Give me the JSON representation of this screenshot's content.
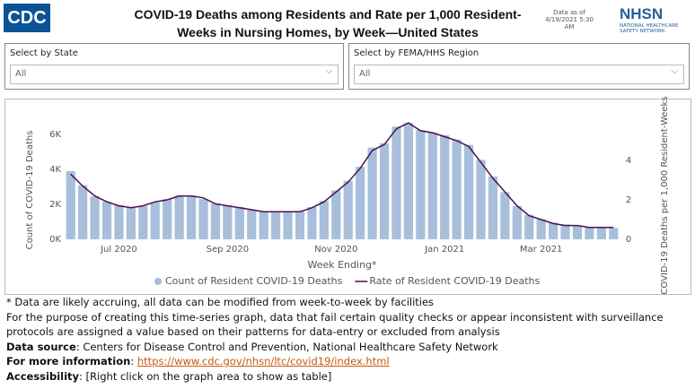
{
  "header": {
    "logo": "CDC",
    "title": "COVID-19 Deaths among Residents and Rate per 1,000 Resident-Weeks in Nursing Homes, by Week—United States",
    "data_date": "Data as of 4/19/2021 5:30 AM",
    "nhsn_logo": "NHSN",
    "nhsn_name": "NATIONAL HEALTHCARE SAFETY NETWORK"
  },
  "filters": [
    {
      "label": "Select by State",
      "value": "All"
    },
    {
      "label": "Select by FEMA/HHS Region",
      "value": "All"
    }
  ],
  "chart_data": {
    "type": "bar-line",
    "categories": [
      null,
      null,
      null,
      null,
      "Jul 2020",
      null,
      null,
      null,
      null,
      null,
      null,
      null,
      null,
      "Sep 2020",
      null,
      null,
      null,
      null,
      null,
      null,
      null,
      null,
      "Nov 2020",
      null,
      null,
      null,
      null,
      null,
      null,
      null,
      null,
      "Jan 2021",
      null,
      null,
      null,
      null,
      null,
      null,
      null,
      "Mar 2021",
      null,
      null,
      null,
      null,
      null,
      null
    ],
    "x_label": "Week Ending*",
    "y_label": "Count of COVID-19 Deaths",
    "y2_label": "COVID-19 Deaths per 1,000 Resident-Weeks",
    "series": [
      {
        "name": "Count of Resident COVID-19 Deaths",
        "type": "bar",
        "color": "#a7bfdb",
        "values": [
          3900,
          3100,
          2450,
          2150,
          1950,
          1800,
          1900,
          2100,
          2300,
          2500,
          2500,
          2300,
          2050,
          1950,
          1850,
          1700,
          1600,
          1550,
          1550,
          1600,
          1850,
          2200,
          2800,
          3350,
          4150,
          5250,
          5500,
          6450,
          6650,
          6250,
          6100,
          5950,
          5700,
          5400,
          4550,
          3600,
          2700,
          1900,
          1400,
          1150,
          950,
          850,
          750,
          700,
          700,
          650
        ]
      },
      {
        "name": "Rate of Resident COVID-19 Deaths",
        "type": "line",
        "axis": "y2",
        "color": "#4b0f4e",
        "values": [
          3.3,
          2.7,
          2.2,
          1.9,
          1.7,
          1.6,
          1.7,
          1.9,
          2.0,
          2.2,
          2.2,
          2.1,
          1.8,
          1.7,
          1.6,
          1.5,
          1.4,
          1.4,
          1.4,
          1.4,
          1.6,
          1.9,
          2.4,
          2.9,
          3.6,
          4.5,
          4.8,
          5.6,
          5.9,
          5.5,
          5.4,
          5.2,
          5.0,
          4.7,
          3.9,
          3.1,
          2.4,
          1.7,
          1.2,
          1.0,
          0.8,
          0.7,
          0.7,
          0.6,
          0.6,
          0.6
        ]
      }
    ],
    "ylim": [
      0,
      7000
    ],
    "yticks": [
      {
        "value": 0,
        "label": "0K"
      },
      {
        "value": 2000,
        "label": "2K"
      },
      {
        "value": 4000,
        "label": "4K"
      },
      {
        "value": 6000,
        "label": "6K"
      }
    ],
    "y2lim": [
      0,
      6.2
    ],
    "y2ticks": [
      0,
      2,
      4
    ],
    "grid": false,
    "legend": "bottom"
  },
  "notes": {
    "footnote": "* Data are likely accruing, all data can be modified from week-to-week by facilities",
    "purpose": "For the purpose of creating this time-series graph, data that fail certain quality checks or appear inconsistent with surveillance protocols are assigned a value based on their patterns for data-entry or excluded from analysis",
    "source": {
      "label": "Data source",
      "text": ": Centers for Disease Control and Prevention, National Healthcare Safety Network"
    },
    "info": {
      "label": "For more information",
      "text": ": ",
      "link": "https://www.cdc.gov/nhsn/ltc/covid19/index.html"
    },
    "accessibility": {
      "label": "Accessibility",
      "text": ": [Right click on the graph area to show as table]"
    }
  }
}
